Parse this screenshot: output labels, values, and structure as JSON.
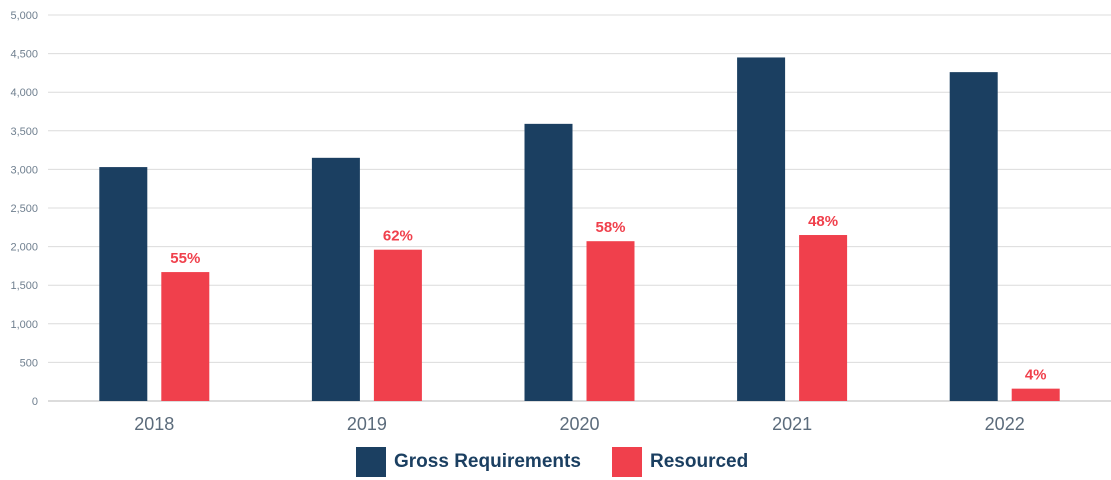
{
  "chart_data": {
    "type": "bar",
    "title": "",
    "xlabel": "",
    "ylabel": "",
    "ylim": [
      0,
      5000
    ],
    "yticks": [
      0,
      500,
      1000,
      1500,
      2000,
      2500,
      3000,
      3500,
      4000,
      4500,
      5000
    ],
    "ytick_labels": [
      "0",
      "500",
      "1,000",
      "1,500",
      "2,000",
      "2,500",
      "3,000",
      "3,500",
      "4,000",
      "4,500",
      "5,000"
    ],
    "categories": [
      "2018",
      "2019",
      "2020",
      "2021",
      "2022"
    ],
    "grid": true,
    "legend_position": "bottom-center",
    "series": [
      {
        "name": "Gross Requirements",
        "color": "#1b3f61",
        "values": [
          3030,
          3150,
          3590,
          4450,
          4260
        ],
        "data_labels": []
      },
      {
        "name": "Resourced",
        "color": "#f0404c",
        "values": [
          1670,
          1960,
          2070,
          2150,
          160
        ],
        "data_labels": [
          "55%",
          "62%",
          "58%",
          "48%",
          "4%"
        ]
      }
    ]
  }
}
